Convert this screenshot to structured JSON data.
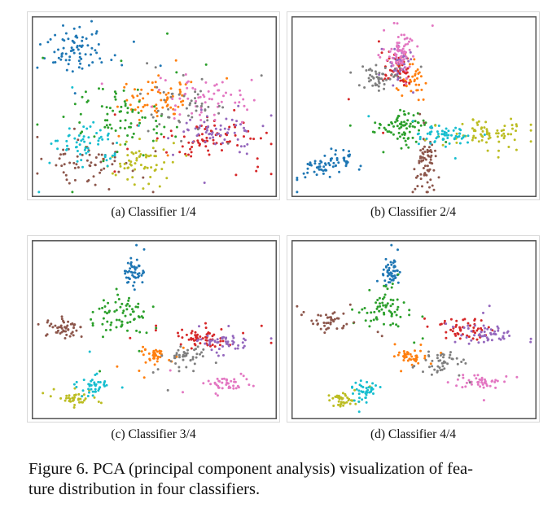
{
  "figure": {
    "caption": "Figure 6. PCA (principal component analysis) visualization of fea-ture distribution in four classifiers.",
    "caption_line1": "Figure 6. PCA (principal component analysis) visualization of fea-",
    "caption_line2": "ture distribution in four classifiers."
  },
  "palette": {
    "c0": "#1f77b4",
    "c1": "#ff7f0e",
    "c2": "#2ca02c",
    "c3": "#d62728",
    "c4": "#9467bd",
    "c5": "#8c564b",
    "c6": "#e377c2",
    "c7": "#7f7f7f",
    "c8": "#bcbd22",
    "c9": "#17becf",
    "frame": "#555555"
  },
  "chart_data": [
    {
      "type": "scatter",
      "title": "(a) Classifier 1/4",
      "xlabel": "",
      "ylabel": "",
      "xlim": [
        0,
        1
      ],
      "ylim": [
        0,
        1
      ],
      "grid": false,
      "legend": "none",
      "clusters": [
        {
          "class": 0,
          "color": "#1f77b4",
          "cx": 0.17,
          "cy": 0.83,
          "sx": 0.07,
          "sy": 0.07,
          "n": 80
        },
        {
          "class": 1,
          "color": "#ff7f0e",
          "cx": 0.52,
          "cy": 0.55,
          "sx": 0.08,
          "sy": 0.06,
          "n": 70
        },
        {
          "class": 2,
          "color": "#2ca02c",
          "cx": 0.38,
          "cy": 0.42,
          "sx": 0.09,
          "sy": 0.09,
          "n": 80
        },
        {
          "class": 3,
          "color": "#d62728",
          "cx": 0.73,
          "cy": 0.33,
          "sx": 0.09,
          "sy": 0.05,
          "n": 80
        },
        {
          "class": 4,
          "color": "#9467bd",
          "cx": 0.76,
          "cy": 0.35,
          "sx": 0.08,
          "sy": 0.05,
          "n": 60
        },
        {
          "class": 5,
          "color": "#8c564b",
          "cx": 0.23,
          "cy": 0.16,
          "sx": 0.08,
          "sy": 0.06,
          "n": 60
        },
        {
          "class": 6,
          "color": "#e377c2",
          "cx": 0.69,
          "cy": 0.55,
          "sx": 0.09,
          "sy": 0.07,
          "n": 60
        },
        {
          "class": 7,
          "color": "#7f7f7f",
          "cx": 0.63,
          "cy": 0.53,
          "sx": 0.09,
          "sy": 0.08,
          "n": 50
        },
        {
          "class": 8,
          "color": "#bcbd22",
          "cx": 0.44,
          "cy": 0.19,
          "sx": 0.06,
          "sy": 0.05,
          "n": 60
        },
        {
          "class": 9,
          "color": "#17becf",
          "cx": 0.2,
          "cy": 0.27,
          "sx": 0.07,
          "sy": 0.06,
          "n": 60
        }
      ]
    },
    {
      "type": "scatter",
      "title": "(b) Classifier 2/4",
      "xlabel": "",
      "ylabel": "",
      "xlim": [
        0,
        1
      ],
      "ylim": [
        0,
        1
      ],
      "grid": false,
      "legend": "none",
      "clusters": [
        {
          "class": 0,
          "color": "#1f77b4",
          "cx": 0.14,
          "cy": 0.17,
          "sx": 0.07,
          "sy": 0.03,
          "n": 70,
          "rot": 0.55
        },
        {
          "class": 1,
          "color": "#ff7f0e",
          "cx": 0.49,
          "cy": 0.66,
          "sx": 0.025,
          "sy": 0.05,
          "n": 40
        },
        {
          "class": 2,
          "color": "#2ca02c",
          "cx": 0.44,
          "cy": 0.38,
          "sx": 0.05,
          "sy": 0.05,
          "n": 80
        },
        {
          "class": 3,
          "color": "#d62728",
          "cx": 0.43,
          "cy": 0.71,
          "sx": 0.03,
          "sy": 0.04,
          "n": 50
        },
        {
          "class": 4,
          "color": "#9467bd",
          "cx": 0.44,
          "cy": 0.73,
          "sx": 0.025,
          "sy": 0.05,
          "n": 40
        },
        {
          "class": 5,
          "color": "#8c564b",
          "cx": 0.55,
          "cy": 0.19,
          "sx": 0.02,
          "sy": 0.08,
          "n": 70
        },
        {
          "class": 6,
          "color": "#e377c2",
          "cx": 0.44,
          "cy": 0.8,
          "sx": 0.025,
          "sy": 0.06,
          "n": 70
        },
        {
          "class": 7,
          "color": "#7f7f7f",
          "cx": 0.36,
          "cy": 0.66,
          "sx": 0.04,
          "sy": 0.03,
          "n": 50
        },
        {
          "class": 8,
          "color": "#bcbd22",
          "cx": 0.8,
          "cy": 0.34,
          "sx": 0.07,
          "sy": 0.04,
          "n": 70
        },
        {
          "class": 9,
          "color": "#17becf",
          "cx": 0.62,
          "cy": 0.33,
          "sx": 0.05,
          "sy": 0.03,
          "n": 60
        }
      ]
    },
    {
      "type": "scatter",
      "title": "(c) Classifier 3/4",
      "xlabel": "",
      "ylabel": "",
      "xlim": [
        0,
        1
      ],
      "ylim": [
        0,
        1
      ],
      "grid": false,
      "legend": "none",
      "clusters": [
        {
          "class": 0,
          "color": "#1f77b4",
          "cx": 0.42,
          "cy": 0.83,
          "sx": 0.02,
          "sy": 0.04,
          "n": 50
        },
        {
          "class": 1,
          "color": "#ff7f0e",
          "cx": 0.49,
          "cy": 0.35,
          "sx": 0.03,
          "sy": 0.02,
          "n": 40
        },
        {
          "class": 2,
          "color": "#2ca02c",
          "cx": 0.37,
          "cy": 0.59,
          "sx": 0.05,
          "sy": 0.06,
          "n": 70
        },
        {
          "class": 3,
          "color": "#d62728",
          "cx": 0.71,
          "cy": 0.46,
          "sx": 0.06,
          "sy": 0.03,
          "n": 60
        },
        {
          "class": 4,
          "color": "#9467bd",
          "cx": 0.8,
          "cy": 0.43,
          "sx": 0.05,
          "sy": 0.03,
          "n": 50
        },
        {
          "class": 5,
          "color": "#8c564b",
          "cx": 0.12,
          "cy": 0.51,
          "sx": 0.04,
          "sy": 0.025,
          "n": 50
        },
        {
          "class": 6,
          "color": "#e377c2",
          "cx": 0.8,
          "cy": 0.19,
          "sx": 0.04,
          "sy": 0.02,
          "n": 45
        },
        {
          "class": 7,
          "color": "#7f7f7f",
          "cx": 0.63,
          "cy": 0.34,
          "sx": 0.04,
          "sy": 0.03,
          "n": 45
        },
        {
          "class": 8,
          "color": "#bcbd22",
          "cx": 0.16,
          "cy": 0.1,
          "sx": 0.025,
          "sy": 0.02,
          "n": 40
        },
        {
          "class": 9,
          "color": "#17becf",
          "cx": 0.25,
          "cy": 0.17,
          "sx": 0.03,
          "sy": 0.03,
          "n": 40
        }
      ]
    },
    {
      "type": "scatter",
      "title": "(d) Classifier 4/4",
      "xlabel": "",
      "ylabel": "",
      "xlim": [
        0,
        1
      ],
      "ylim": [
        0,
        1
      ],
      "grid": false,
      "legend": "none",
      "clusters": [
        {
          "class": 0,
          "color": "#1f77b4",
          "cx": 0.4,
          "cy": 0.84,
          "sx": 0.02,
          "sy": 0.04,
          "n": 50
        },
        {
          "class": 1,
          "color": "#ff7f0e",
          "cx": 0.49,
          "cy": 0.34,
          "sx": 0.03,
          "sy": 0.02,
          "n": 40
        },
        {
          "class": 2,
          "color": "#2ca02c",
          "cx": 0.37,
          "cy": 0.61,
          "sx": 0.05,
          "sy": 0.06,
          "n": 70
        },
        {
          "class": 3,
          "color": "#d62728",
          "cx": 0.71,
          "cy": 0.51,
          "sx": 0.05,
          "sy": 0.03,
          "n": 55
        },
        {
          "class": 4,
          "color": "#9467bd",
          "cx": 0.81,
          "cy": 0.47,
          "sx": 0.05,
          "sy": 0.03,
          "n": 55
        },
        {
          "class": 5,
          "color": "#8c564b",
          "cx": 0.15,
          "cy": 0.55,
          "sx": 0.04,
          "sy": 0.03,
          "n": 45
        },
        {
          "class": 6,
          "color": "#e377c2",
          "cx": 0.78,
          "cy": 0.2,
          "sx": 0.04,
          "sy": 0.02,
          "n": 45
        },
        {
          "class": 7,
          "color": "#7f7f7f",
          "cx": 0.62,
          "cy": 0.31,
          "sx": 0.04,
          "sy": 0.03,
          "n": 45
        },
        {
          "class": 8,
          "color": "#bcbd22",
          "cx": 0.2,
          "cy": 0.09,
          "sx": 0.025,
          "sy": 0.02,
          "n": 40
        },
        {
          "class": 9,
          "color": "#17becf",
          "cx": 0.29,
          "cy": 0.16,
          "sx": 0.03,
          "sy": 0.03,
          "n": 40
        }
      ]
    }
  ]
}
